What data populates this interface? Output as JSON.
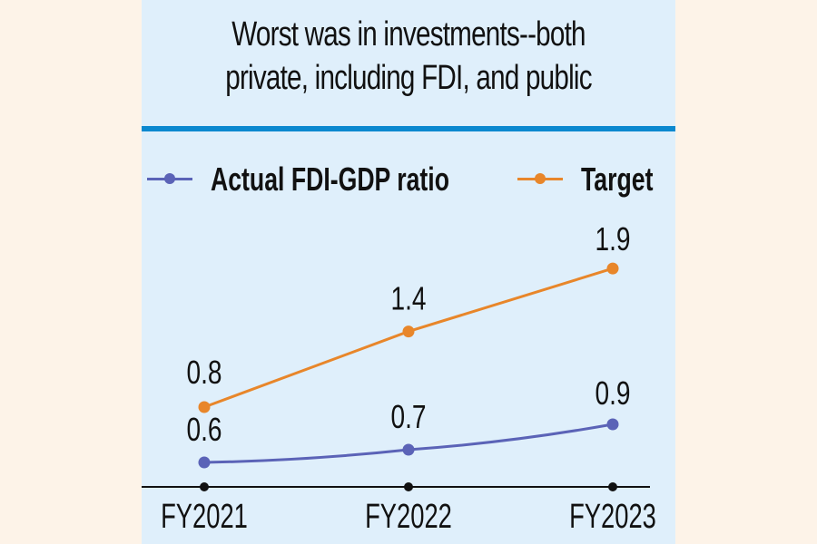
{
  "colors": {
    "page_background": "#fdf3e8",
    "panel_background": "#dfeffb",
    "rule": "#0b88cf",
    "actual": "#5b63b7",
    "target": "#e8862a",
    "axis": "#111111"
  },
  "chart_data": {
    "type": "line",
    "title_lines": [
      "Worst was in investments--both",
      "private, including FDI, and public"
    ],
    "xlabel": "",
    "ylabel": "",
    "categories": [
      "FY2021",
      "FY2022",
      "FY2023"
    ],
    "series": [
      {
        "name": "Actual FDI-GDP ratio",
        "color": "#5b63b7",
        "values": [
          0.6,
          0.7,
          0.9
        ],
        "labels": [
          "0.6",
          "0.7",
          "0.9"
        ]
      },
      {
        "name": "Target",
        "color": "#e8862a",
        "values": [
          0.8,
          1.4,
          1.9
        ],
        "labels": [
          "0.8",
          "1.4",
          "1.9"
        ]
      }
    ],
    "ylim": [
      0.5,
      2.0
    ],
    "grid": false,
    "legend_position": "top-left",
    "data_labels": true
  }
}
